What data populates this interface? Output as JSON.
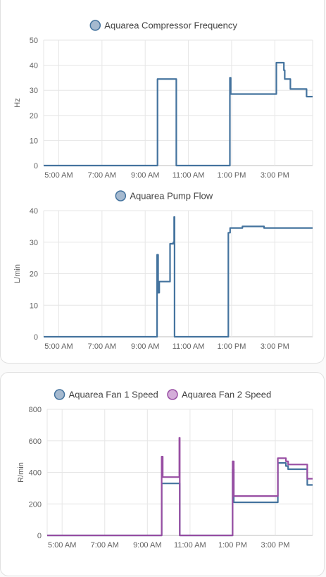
{
  "colors": {
    "series_blue": "#44739e",
    "series_blue_fill": "#a5b9cf",
    "series_purple": "#984ea3",
    "series_purple_fill": "#d4add9"
  },
  "chart_data": [
    {
      "type": "line",
      "title": "",
      "legend": [
        "Aquarea Compressor Frequency"
      ],
      "ylabel": "Hz",
      "ylim": [
        0,
        50
      ],
      "yticks": [
        0,
        10,
        20,
        30,
        40,
        50
      ],
      "xticks": [
        "5:00 AM",
        "7:00 AM",
        "9:00 AM",
        "11:00 AM",
        "1:00 PM",
        "3:00 PM"
      ],
      "xtick_hours": [
        5,
        7,
        9,
        11,
        13,
        15
      ],
      "xlim_hours": [
        4.3,
        16.75
      ],
      "series": [
        {
          "name": "Aquarea Compressor Frequency",
          "color": "#44739e",
          "points": [
            [
              4.3,
              0
            ],
            [
              9.55,
              0
            ],
            [
              9.57,
              34.5
            ],
            [
              10.42,
              34.5
            ],
            [
              10.44,
              0
            ],
            [
              12.9,
              0
            ],
            [
              12.92,
              35
            ],
            [
              12.96,
              28.5
            ],
            [
              15.05,
              28.5
            ],
            [
              15.07,
              41
            ],
            [
              15.4,
              41
            ],
            [
              15.42,
              38
            ],
            [
              15.46,
              34.5
            ],
            [
              15.7,
              34.5
            ],
            [
              15.72,
              30.5
            ],
            [
              16.45,
              30.5
            ],
            [
              16.47,
              27.5
            ],
            [
              16.75,
              27.5
            ]
          ]
        }
      ]
    },
    {
      "type": "line",
      "title": "",
      "legend": [
        "Aquarea Pump Flow"
      ],
      "ylabel": "L/min",
      "ylim": [
        0,
        40
      ],
      "yticks": [
        0,
        10,
        20,
        30,
        40
      ],
      "xticks": [
        "5:00 AM",
        "7:00 AM",
        "9:00 AM",
        "11:00 AM",
        "1:00 PM",
        "3:00 PM"
      ],
      "xtick_hours": [
        5,
        7,
        9,
        11,
        13,
        15
      ],
      "xlim_hours": [
        4.3,
        16.75
      ],
      "series": [
        {
          "name": "Aquarea Pump Flow",
          "color": "#44739e",
          "points": [
            [
              4.3,
              0
            ],
            [
              9.53,
              0
            ],
            [
              9.55,
              26
            ],
            [
              9.6,
              14
            ],
            [
              9.65,
              17.5
            ],
            [
              10.1,
              17.5
            ],
            [
              10.15,
              29.5
            ],
            [
              10.3,
              30
            ],
            [
              10.34,
              38
            ],
            [
              10.36,
              0
            ],
            [
              12.8,
              0
            ],
            [
              12.85,
              33
            ],
            [
              12.93,
              34.5
            ],
            [
              13.5,
              35
            ],
            [
              14.5,
              34.5
            ],
            [
              15.5,
              34.5
            ],
            [
              16.5,
              34.5
            ],
            [
              16.75,
              34.5
            ]
          ]
        }
      ]
    },
    {
      "type": "line",
      "title": "",
      "legend": [
        "Aquarea Fan 1 Speed",
        "Aquarea Fan 2 Speed"
      ],
      "ylabel": "R/min",
      "ylim": [
        0,
        800
      ],
      "yticks": [
        0,
        200,
        400,
        600,
        800
      ],
      "xticks": [
        "5:00 AM",
        "7:00 AM",
        "9:00 AM",
        "11:00 AM",
        "1:00 PM",
        "3:00 PM"
      ],
      "xtick_hours": [
        5,
        7,
        9,
        11,
        13,
        15
      ],
      "xlim_hours": [
        4.3,
        16.75
      ],
      "series": [
        {
          "name": "Aquarea Fan 1 Speed",
          "color": "#44739e",
          "points": [
            [
              4.3,
              0
            ],
            [
              9.65,
              0
            ],
            [
              9.67,
              330
            ],
            [
              10.5,
              330
            ],
            [
              10.52,
              0
            ],
            [
              12.98,
              0
            ],
            [
              13.0,
              420
            ],
            [
              13.05,
              210
            ],
            [
              15.1,
              210
            ],
            [
              15.12,
              460
            ],
            [
              15.5,
              440
            ],
            [
              15.6,
              420
            ],
            [
              16.45,
              420
            ],
            [
              16.5,
              320
            ],
            [
              16.75,
              320
            ]
          ]
        },
        {
          "name": "Aquarea Fan 2 Speed",
          "color": "#984ea3",
          "points": [
            [
              4.3,
              0
            ],
            [
              9.65,
              0
            ],
            [
              9.67,
              500
            ],
            [
              9.72,
              370
            ],
            [
              10.48,
              370
            ],
            [
              10.5,
              620
            ],
            [
              10.52,
              0
            ],
            [
              12.98,
              0
            ],
            [
              13.0,
              470
            ],
            [
              13.05,
              250
            ],
            [
              15.1,
              250
            ],
            [
              15.12,
              490
            ],
            [
              15.5,
              470
            ],
            [
              15.6,
              450
            ],
            [
              16.45,
              450
            ],
            [
              16.5,
              360
            ],
            [
              16.75,
              360
            ]
          ]
        }
      ]
    }
  ]
}
